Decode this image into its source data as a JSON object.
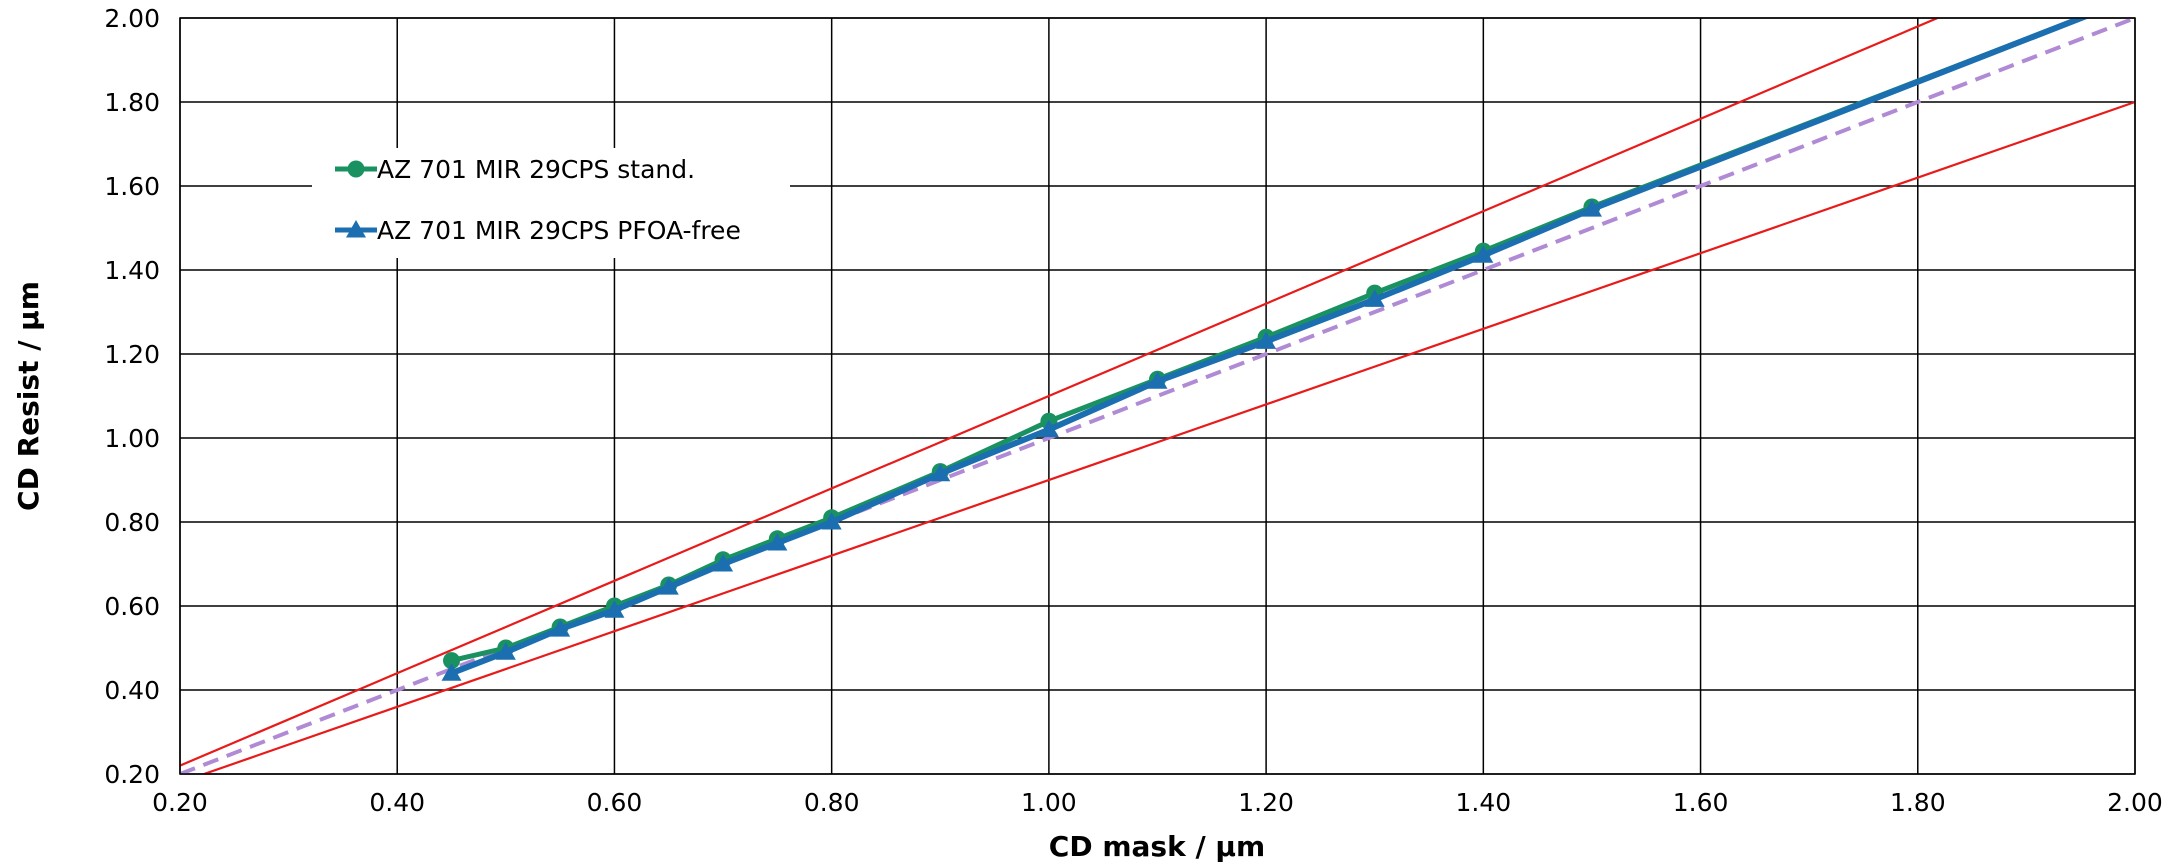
{
  "chart_data": {
    "type": "line",
    "title": "",
    "xlabel": "CD mask / µm",
    "ylabel": "CD Resist / µm",
    "xlim": [
      0.2,
      2.0
    ],
    "ylim": [
      0.2,
      2.0
    ],
    "x_ticks": [
      "0.20",
      "0.40",
      "0.60",
      "0.80",
      "1.00",
      "1.20",
      "1.40",
      "1.60",
      "1.80",
      "2.00"
    ],
    "y_ticks": [
      "0.20",
      "0.40",
      "0.60",
      "0.80",
      "1.00",
      "1.20",
      "1.40",
      "1.60",
      "1.80",
      "2.00"
    ],
    "grid": true,
    "legend_position": "upper-left",
    "series": [
      {
        "name": "AZ 701 MIR 29CPS stand.",
        "color": "#1a9160",
        "marker": "circle",
        "x": [
          0.45,
          0.5,
          0.55,
          0.6,
          0.65,
          0.7,
          0.75,
          0.8,
          0.9,
          1.0,
          1.1,
          1.2,
          1.3,
          1.4,
          1.5,
          2.0
        ],
        "y": [
          0.47,
          0.5,
          0.55,
          0.6,
          0.65,
          0.71,
          0.76,
          0.81,
          0.92,
          1.04,
          1.14,
          1.24,
          1.345,
          1.445,
          1.55,
          2.05
        ]
      },
      {
        "name": "AZ 701 MIR 29CPS PFOA-free",
        "color": "#1b6fb0",
        "marker": "triangle",
        "x": [
          0.45,
          0.5,
          0.55,
          0.6,
          0.65,
          0.7,
          0.75,
          0.8,
          0.9,
          1.0,
          1.1,
          1.2,
          1.3,
          1.4,
          1.5,
          2.0
        ],
        "y": [
          0.44,
          0.49,
          0.545,
          0.59,
          0.645,
          0.7,
          0.75,
          0.8,
          0.915,
          1.02,
          1.135,
          1.23,
          1.33,
          1.435,
          1.545,
          2.05
        ]
      }
    ],
    "reference_lines": [
      {
        "x": [
          0.2,
          2.0
        ],
        "y": [
          0.2,
          2.0
        ],
        "color": "#b08ad4",
        "style": "dashed"
      },
      {
        "x": [
          0.2,
          2.0
        ],
        "y": [
          0.22,
          2.2
        ],
        "color": "#e81a1a",
        "style": "solid"
      },
      {
        "x": [
          0.2,
          2.0
        ],
        "y": [
          0.18,
          1.8
        ],
        "color": "#e81a1a",
        "style": "solid"
      }
    ]
  }
}
